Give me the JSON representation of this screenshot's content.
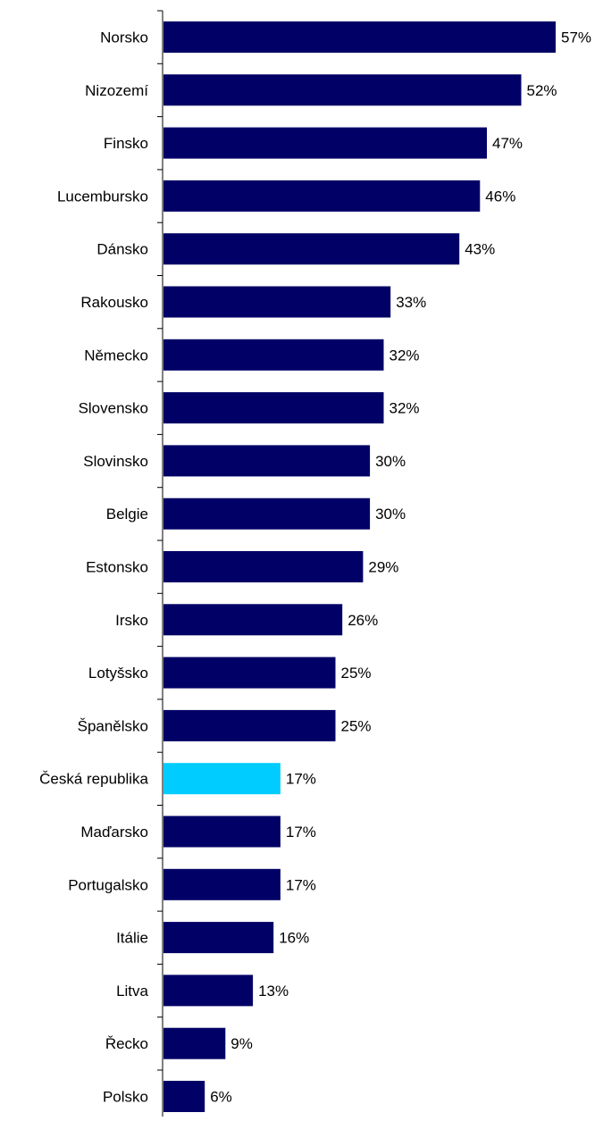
{
  "chart_data": {
    "type": "bar",
    "orientation": "horizontal",
    "categories": [
      "Norsko",
      "Nizozemí",
      "Finsko",
      "Lucembursko",
      "Dánsko",
      "Rakousko",
      "Německo",
      "Slovensko",
      "Slovinsko",
      "Belgie",
      "Estonsko",
      "Irsko",
      "Lotyšsko",
      "Španělsko",
      "Česká republika",
      "Maďarsko",
      "Portugalsko",
      "Itálie",
      "Litva",
      "Řecko",
      "Polsko"
    ],
    "values": [
      57,
      52,
      47,
      46,
      43,
      33,
      32,
      32,
      30,
      30,
      29,
      26,
      25,
      25,
      17,
      17,
      17,
      16,
      13,
      9,
      6
    ],
    "value_labels": [
      "57%",
      "52%",
      "47%",
      "46%",
      "43%",
      "33%",
      "32%",
      "32%",
      "30%",
      "30%",
      "29%",
      "26%",
      "25%",
      "25%",
      "17%",
      "17%",
      "17%",
      "16%",
      "13%",
      "9%",
      "6%"
    ],
    "highlight_category": "Česká republika",
    "unit": "%",
    "xlim": [
      0,
      57
    ],
    "grid": false,
    "colors": {
      "bar": "#000066",
      "highlight": "#00ccff",
      "axis": "#000000",
      "text": "#000000"
    }
  }
}
